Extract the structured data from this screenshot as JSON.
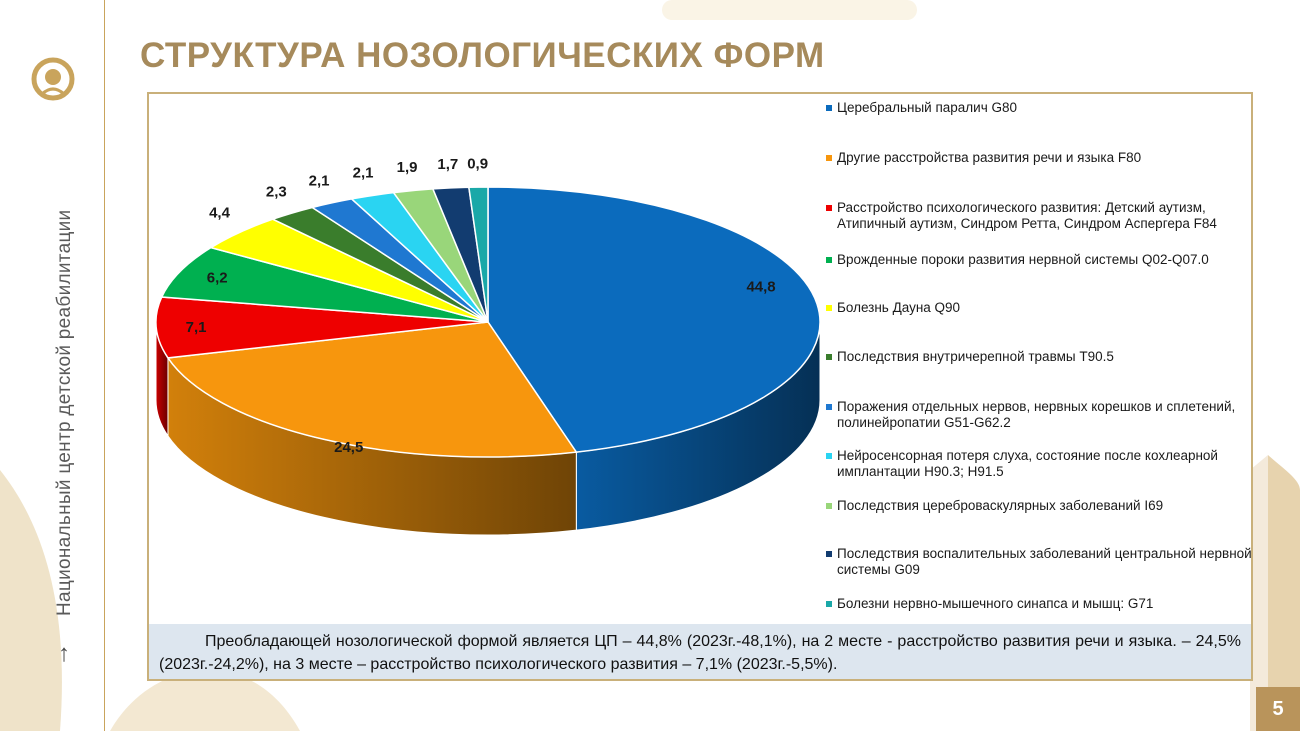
{
  "side_text": "Национальный центр детской реабилитации",
  "side_arrow_icon": "arrow-up",
  "title": "СТРУКТУРА НОЗОЛОГИЧЕСКИХ ФОРМ",
  "page_number": "5",
  "note": "Преобладающей нозологической формой является ЦП – 44,8% (2023г.-48,1%), на 2 месте - расстройство развития речи и языка. – 24,5% (2023г.-24,2%), на 3 месте – расстройство психологического развития – 7,1% (2023г.-5,5%).",
  "colors": {
    "accent": "#a68a5b",
    "frame": "#c9b07a",
    "note_bg": "#dde6ef"
  },
  "chart_data": {
    "type": "pie",
    "title": "",
    "slices": [
      {
        "label": "Церебральный паралич G80",
        "value": 44.8,
        "value_label": "44,8",
        "color": "#0b6bbd"
      },
      {
        "label": "Другие расстройства развития речи и языка F80",
        "value": 24.5,
        "value_label": "24,5",
        "color": "#f7960d"
      },
      {
        "label": "Расстройство психологического развития: Детский аутизм, Атипичный аутизм, Синдром Ретта, Синдром Аспергера F84",
        "value": 7.1,
        "value_label": "7,1",
        "color": "#ee0000"
      },
      {
        "label": "Врожденные пороки развития нервной системы Q02-Q07.0",
        "value": 6.2,
        "value_label": "6,2",
        "color": "#00b050"
      },
      {
        "label": "Болезнь Дауна Q90",
        "value": 4.4,
        "value_label": "4,4",
        "color": "#ffff00"
      },
      {
        "label": "Последствия внутричерепной травмы T90.5",
        "value": 2.3,
        "value_label": "2,3",
        "color": "#3a7d2c"
      },
      {
        "label": "Поражения отдельных нервов, нервных корешков и сплетений, полинейропатии G51-G62.2",
        "value": 2.1,
        "value_label": "2,1",
        "color": "#1f78d1"
      },
      {
        "label": "Нейросенсорная потеря слуха, состояние после кохлеарной имплантации H90.3; H91.5",
        "value": 2.1,
        "value_label": "2,1",
        "color": "#2ad4f2"
      },
      {
        "label": "Последствия цереброваскулярных заболеваний I69",
        "value": 1.9,
        "value_label": "1,9",
        "color": "#99d67a"
      },
      {
        "label": "Последствия воспалительных заболеваний центральной нервной системы G09",
        "value": 1.7,
        "value_label": "1,7",
        "color": "#123c70"
      },
      {
        "label": "Болезни нервно-мышечного синапса и мышц: G71",
        "value": 0.9,
        "value_label": "0,9",
        "color": "#1aa8a8"
      }
    ],
    "legend_position": "right"
  }
}
